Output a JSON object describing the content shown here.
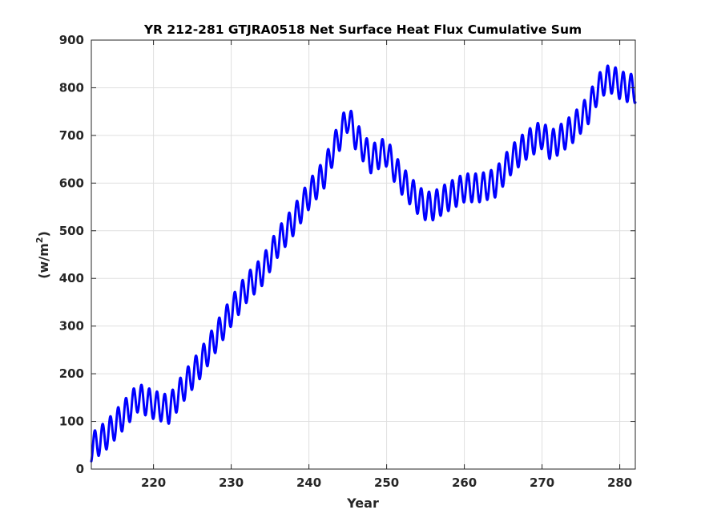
{
  "chart_data": {
    "type": "line",
    "title": "YR 212-281 GTJRA0518 Net Surface Heat Flux  Cumulative Sum",
    "xlabel": "Year",
    "ylabel_base": "(w/m",
    "ylabel_sup": "2",
    "ylabel_close": ")",
    "xlim": [
      212,
      282
    ],
    "ylim": [
      0,
      900
    ],
    "xticks": [
      220,
      230,
      240,
      250,
      260,
      270,
      280
    ],
    "yticks": [
      0,
      100,
      200,
      300,
      400,
      500,
      600,
      700,
      800,
      900
    ],
    "grid": true,
    "oscillation_amplitude": 30,
    "series": [
      {
        "color": "#0000ff",
        "x": [
          212,
          214,
          216,
          218,
          220,
          222,
          224,
          226,
          228,
          230,
          232,
          234,
          236,
          238,
          240,
          242,
          243,
          244,
          245,
          246,
          247,
          248,
          249,
          250,
          251,
          252,
          253,
          254,
          255,
          256,
          258,
          260,
          262,
          264,
          266,
          268,
          270,
          271,
          272,
          274,
          276,
          277,
          278,
          279,
          280,
          281,
          282
        ],
        "y": [
          45,
          72,
          110,
          150,
          135,
          125,
          175,
          220,
          275,
          330,
          380,
          415,
          475,
          520,
          575,
          620,
          665,
          700,
          738,
          700,
          675,
          650,
          660,
          665,
          632,
          605,
          585,
          565,
          552,
          552,
          572,
          590,
          590,
          600,
          648,
          680,
          702,
          680,
          688,
          715,
          755,
          792,
          815,
          818,
          806,
          800,
          798
        ]
      }
    ]
  }
}
